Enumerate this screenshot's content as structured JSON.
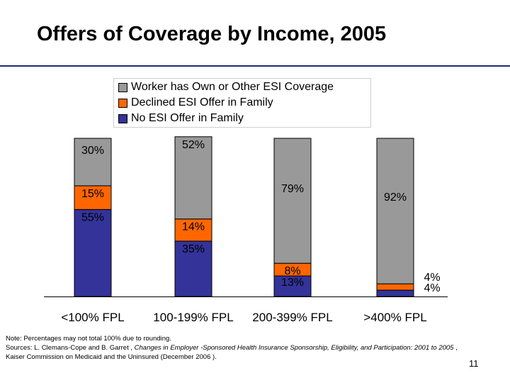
{
  "slide": {
    "title": "Offers of Coverage by Income, 2005",
    "page_number": "11",
    "note": "Note: Percentages may not total 100% due to rounding.",
    "sources_prefix": "Sources: L.  Clemans-Cope and B. Garret , ",
    "sources_title": "Changes in Employer -Sponsored Health Insurance Sponsorship, Eligibility, and Participation: 2001 to 2005",
    "sources_suffix": " , Kaiser Commission on Medicaid and the Uninsured (December 2006   )."
  },
  "chart_data": {
    "type": "bar",
    "stacked": true,
    "categories": [
      "<100% FPL",
      "100-199% FPL",
      "200-399% FPL",
      ">400% FPL"
    ],
    "series": [
      {
        "name": "No ESI Offer in Family",
        "color": "#333399",
        "values": [
          55,
          35,
          13,
          4
        ],
        "labels": [
          "55%",
          "35%",
          "13%",
          "4%"
        ]
      },
      {
        "name": "Declined ESI Offer in Family",
        "color": "#ff6600",
        "values": [
          15,
          14,
          8,
          4
        ],
        "labels": [
          "15%",
          "14%",
          "8%",
          "4%"
        ]
      },
      {
        "name": "Worker has Own or Other ESI Coverage",
        "color": "#999999",
        "values": [
          30,
          52,
          79,
          92
        ],
        "labels": [
          "30%",
          "52%",
          "79%",
          "92%"
        ]
      }
    ],
    "legend_order": [
      "Worker has Own or Other ESI Coverage",
      "Declined ESI Offer in Family",
      "No ESI Offer in Family"
    ],
    "legend_position": "top",
    "ylim": [
      0,
      100
    ]
  }
}
